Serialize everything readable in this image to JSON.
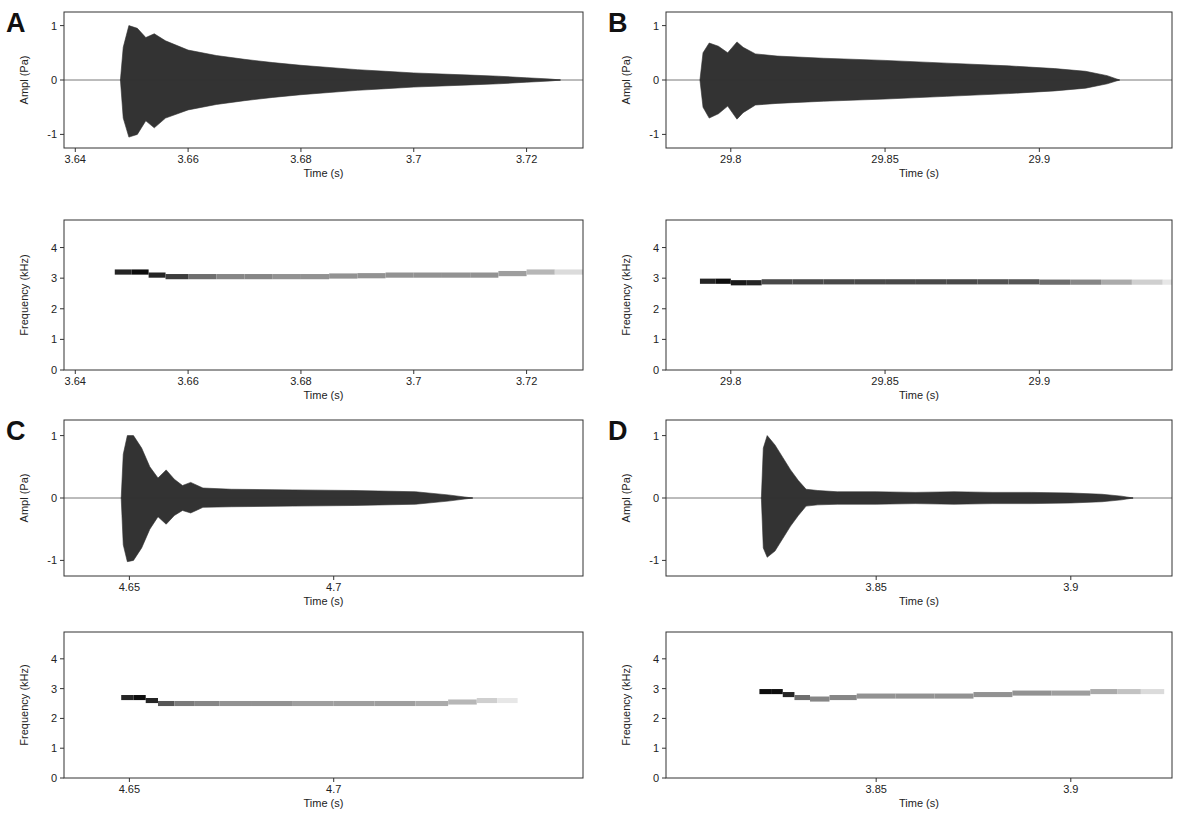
{
  "chart_data": [
    {
      "type": "area",
      "title": "A",
      "x_label": "Time (s)",
      "y_label": "Ampl (Pa)",
      "x": [
        3.648,
        3.6485,
        3.6495,
        3.651,
        3.6525,
        3.654,
        3.656,
        3.66,
        3.665,
        3.67,
        3.675,
        3.68,
        3.685,
        3.69,
        3.695,
        3.7,
        3.705,
        3.71,
        3.715,
        3.72,
        3.724,
        3.726
      ],
      "series": [
        {
          "color": "#333333",
          "values": [
            0,
            0.6,
            1.0,
            0.95,
            0.78,
            0.85,
            0.72,
            0.55,
            0.45,
            0.38,
            0.32,
            0.27,
            0.23,
            0.19,
            0.16,
            0.13,
            0.11,
            0.09,
            0.07,
            0.04,
            0.02,
            0
          ]
        },
        {
          "color": "#333333",
          "values": [
            0,
            -0.7,
            -1.05,
            -1.0,
            -0.75,
            -0.88,
            -0.7,
            -0.55,
            -0.45,
            -0.38,
            -0.32,
            -0.27,
            -0.23,
            -0.19,
            -0.16,
            -0.13,
            -0.11,
            -0.09,
            -0.07,
            -0.04,
            -0.02,
            0
          ]
        }
      ],
      "xlim": [
        3.638,
        3.73
      ],
      "xticks": [
        3.64,
        3.66,
        3.68,
        3.7,
        3.72
      ],
      "ylim": [
        -1.25,
        1.25
      ],
      "yticks": [
        -1,
        0,
        1
      ]
    },
    {
      "type": "spectrogram",
      "x_label": "Time (s)",
      "y_label": "Frequency (kHz)",
      "x": [
        3.647,
        3.65,
        3.653,
        3.656,
        3.66,
        3.665,
        3.67,
        3.675,
        3.68,
        3.685,
        3.69,
        3.695,
        3.7,
        3.705,
        3.71,
        3.715,
        3.72,
        3.725
      ],
      "values": [
        3.2,
        3.2,
        3.1,
        3.05,
        3.05,
        3.05,
        3.05,
        3.05,
        3.05,
        3.07,
        3.08,
        3.1,
        3.1,
        3.1,
        3.1,
        3.15,
        3.2,
        3.2
      ],
      "intensity": [
        0.9,
        1.0,
        0.9,
        0.8,
        0.6,
        0.5,
        0.5,
        0.45,
        0.45,
        0.45,
        0.45,
        0.45,
        0.45,
        0.45,
        0.45,
        0.4,
        0.3,
        0.15
      ],
      "xlim": [
        3.638,
        3.73
      ],
      "xticks": [
        3.64,
        3.66,
        3.68,
        3.7,
        3.72
      ],
      "ylim": [
        0,
        4.9
      ],
      "yticks": [
        0,
        1,
        2,
        3,
        4
      ]
    },
    {
      "type": "area",
      "title": "B",
      "x_label": "Time (s)",
      "y_label": "Ampl (Pa)",
      "x": [
        29.79,
        29.791,
        29.793,
        29.796,
        29.799,
        29.802,
        29.804,
        29.808,
        29.815,
        29.83,
        29.85,
        29.87,
        29.89,
        29.905,
        29.915,
        29.922,
        29.926
      ],
      "series": [
        {
          "color": "#333333",
          "values": [
            0,
            0.5,
            0.68,
            0.62,
            0.5,
            0.7,
            0.6,
            0.48,
            0.44,
            0.4,
            0.36,
            0.31,
            0.26,
            0.21,
            0.16,
            0.08,
            0
          ]
        },
        {
          "color": "#333333",
          "values": [
            0,
            -0.5,
            -0.7,
            -0.62,
            -0.48,
            -0.72,
            -0.6,
            -0.46,
            -0.43,
            -0.39,
            -0.35,
            -0.3,
            -0.25,
            -0.2,
            -0.15,
            -0.07,
            0
          ]
        }
      ],
      "xlim": [
        29.779,
        29.943
      ],
      "xticks": [
        29.8,
        29.85,
        29.9
      ],
      "ylim": [
        -1.25,
        1.25
      ],
      "yticks": [
        -1,
        0,
        1
      ]
    },
    {
      "type": "spectrogram",
      "x_label": "Time (s)",
      "y_label": "Frequency (kHz)",
      "x": [
        29.79,
        29.795,
        29.8,
        29.805,
        29.81,
        29.82,
        29.83,
        29.84,
        29.85,
        29.86,
        29.87,
        29.88,
        29.89,
        29.9,
        29.91,
        29.92,
        29.93,
        29.94
      ],
      "values": [
        2.9,
        2.9,
        2.85,
        2.85,
        2.88,
        2.88,
        2.88,
        2.88,
        2.88,
        2.88,
        2.88,
        2.88,
        2.88,
        2.87,
        2.87,
        2.87,
        2.87,
        2.87
      ],
      "intensity": [
        0.9,
        1.0,
        0.95,
        0.9,
        0.75,
        0.75,
        0.75,
        0.75,
        0.75,
        0.75,
        0.75,
        0.72,
        0.7,
        0.6,
        0.5,
        0.35,
        0.2,
        0.1
      ],
      "xlim": [
        29.779,
        29.943
      ],
      "xticks": [
        29.8,
        29.85,
        29.9
      ],
      "ylim": [
        0,
        4.9
      ],
      "yticks": [
        0,
        1,
        2,
        3,
        4
      ]
    },
    {
      "type": "area",
      "title": "C",
      "x_label": "Time (s)",
      "y_label": "Ampl (Pa)",
      "x": [
        4.648,
        4.6485,
        4.6495,
        4.651,
        4.653,
        4.655,
        4.657,
        4.659,
        4.661,
        4.663,
        4.665,
        4.668,
        4.675,
        4.69,
        4.705,
        4.72,
        4.728,
        4.734
      ],
      "series": [
        {
          "color": "#333333",
          "values": [
            0,
            0.7,
            1.0,
            1.0,
            0.8,
            0.5,
            0.32,
            0.45,
            0.3,
            0.2,
            0.25,
            0.16,
            0.14,
            0.13,
            0.12,
            0.1,
            0.05,
            0
          ]
        },
        {
          "color": "#333333",
          "values": [
            0,
            -0.75,
            -1.02,
            -1.0,
            -0.8,
            -0.5,
            -0.3,
            -0.42,
            -0.28,
            -0.2,
            -0.24,
            -0.15,
            -0.14,
            -0.13,
            -0.12,
            -0.1,
            -0.05,
            0
          ]
        }
      ],
      "xlim": [
        4.634,
        4.761
      ],
      "xticks": [
        4.65,
        4.7
      ],
      "ylim": [
        -1.25,
        1.25
      ],
      "yticks": [
        -1,
        0,
        1
      ]
    },
    {
      "type": "spectrogram",
      "x_label": "Time (s)",
      "y_label": "Frequency (kHz)",
      "x": [
        4.648,
        4.651,
        4.654,
        4.657,
        4.661,
        4.666,
        4.672,
        4.68,
        4.69,
        4.7,
        4.71,
        4.72,
        4.728,
        4.735,
        4.74
      ],
      "values": [
        2.7,
        2.7,
        2.6,
        2.5,
        2.5,
        2.5,
        2.5,
        2.5,
        2.5,
        2.5,
        2.5,
        2.5,
        2.55,
        2.6,
        2.6
      ],
      "intensity": [
        0.9,
        1.0,
        0.9,
        0.7,
        0.55,
        0.5,
        0.45,
        0.45,
        0.4,
        0.4,
        0.4,
        0.35,
        0.3,
        0.2,
        0.1
      ],
      "xlim": [
        4.634,
        4.761
      ],
      "xticks": [
        4.65,
        4.7
      ],
      "ylim": [
        0,
        4.9
      ],
      "yticks": [
        0,
        1,
        2,
        3,
        4
      ]
    },
    {
      "type": "area",
      "title": "D",
      "x_label": "Time (s)",
      "y_label": "Ampl (Pa)",
      "x": [
        3.8205,
        3.821,
        3.822,
        3.824,
        3.826,
        3.828,
        3.83,
        3.832,
        3.835,
        3.84,
        3.85,
        3.86,
        3.87,
        3.88,
        3.89,
        3.9,
        3.908,
        3.913,
        3.916
      ],
      "series": [
        {
          "color": "#333333",
          "values": [
            0,
            0.8,
            1.0,
            0.85,
            0.65,
            0.45,
            0.28,
            0.14,
            0.12,
            0.1,
            0.1,
            0.09,
            0.1,
            0.09,
            0.09,
            0.08,
            0.06,
            0.03,
            0
          ]
        },
        {
          "color": "#333333",
          "values": [
            0,
            -0.8,
            -0.95,
            -0.85,
            -0.65,
            -0.45,
            -0.28,
            -0.13,
            -0.11,
            -0.1,
            -0.1,
            -0.09,
            -0.1,
            -0.09,
            -0.09,
            -0.08,
            -0.06,
            -0.03,
            0
          ]
        }
      ],
      "xlim": [
        3.796,
        3.926
      ],
      "xticks": [
        3.85,
        3.9
      ],
      "ylim": [
        -1.25,
        1.25
      ],
      "yticks": [
        -1,
        0,
        1
      ]
    },
    {
      "type": "spectrogram",
      "x_label": "Time (s)",
      "y_label": "Frequency (kHz)",
      "x": [
        3.82,
        3.823,
        3.826,
        3.829,
        3.833,
        3.838,
        3.845,
        3.855,
        3.865,
        3.875,
        3.885,
        3.895,
        3.905,
        3.912,
        3.918
      ],
      "values": [
        2.9,
        2.9,
        2.8,
        2.7,
        2.65,
        2.7,
        2.75,
        2.75,
        2.75,
        2.8,
        2.85,
        2.85,
        2.9,
        2.9,
        2.9
      ],
      "intensity": [
        1.0,
        1.0,
        0.9,
        0.6,
        0.5,
        0.5,
        0.45,
        0.45,
        0.45,
        0.45,
        0.45,
        0.4,
        0.35,
        0.25,
        0.15
      ],
      "xlim": [
        3.796,
        3.926
      ],
      "xticks": [
        3.85,
        3.9
      ],
      "ylim": [
        0,
        4.9
      ],
      "yticks": [
        0,
        1,
        2,
        3,
        4
      ]
    }
  ]
}
